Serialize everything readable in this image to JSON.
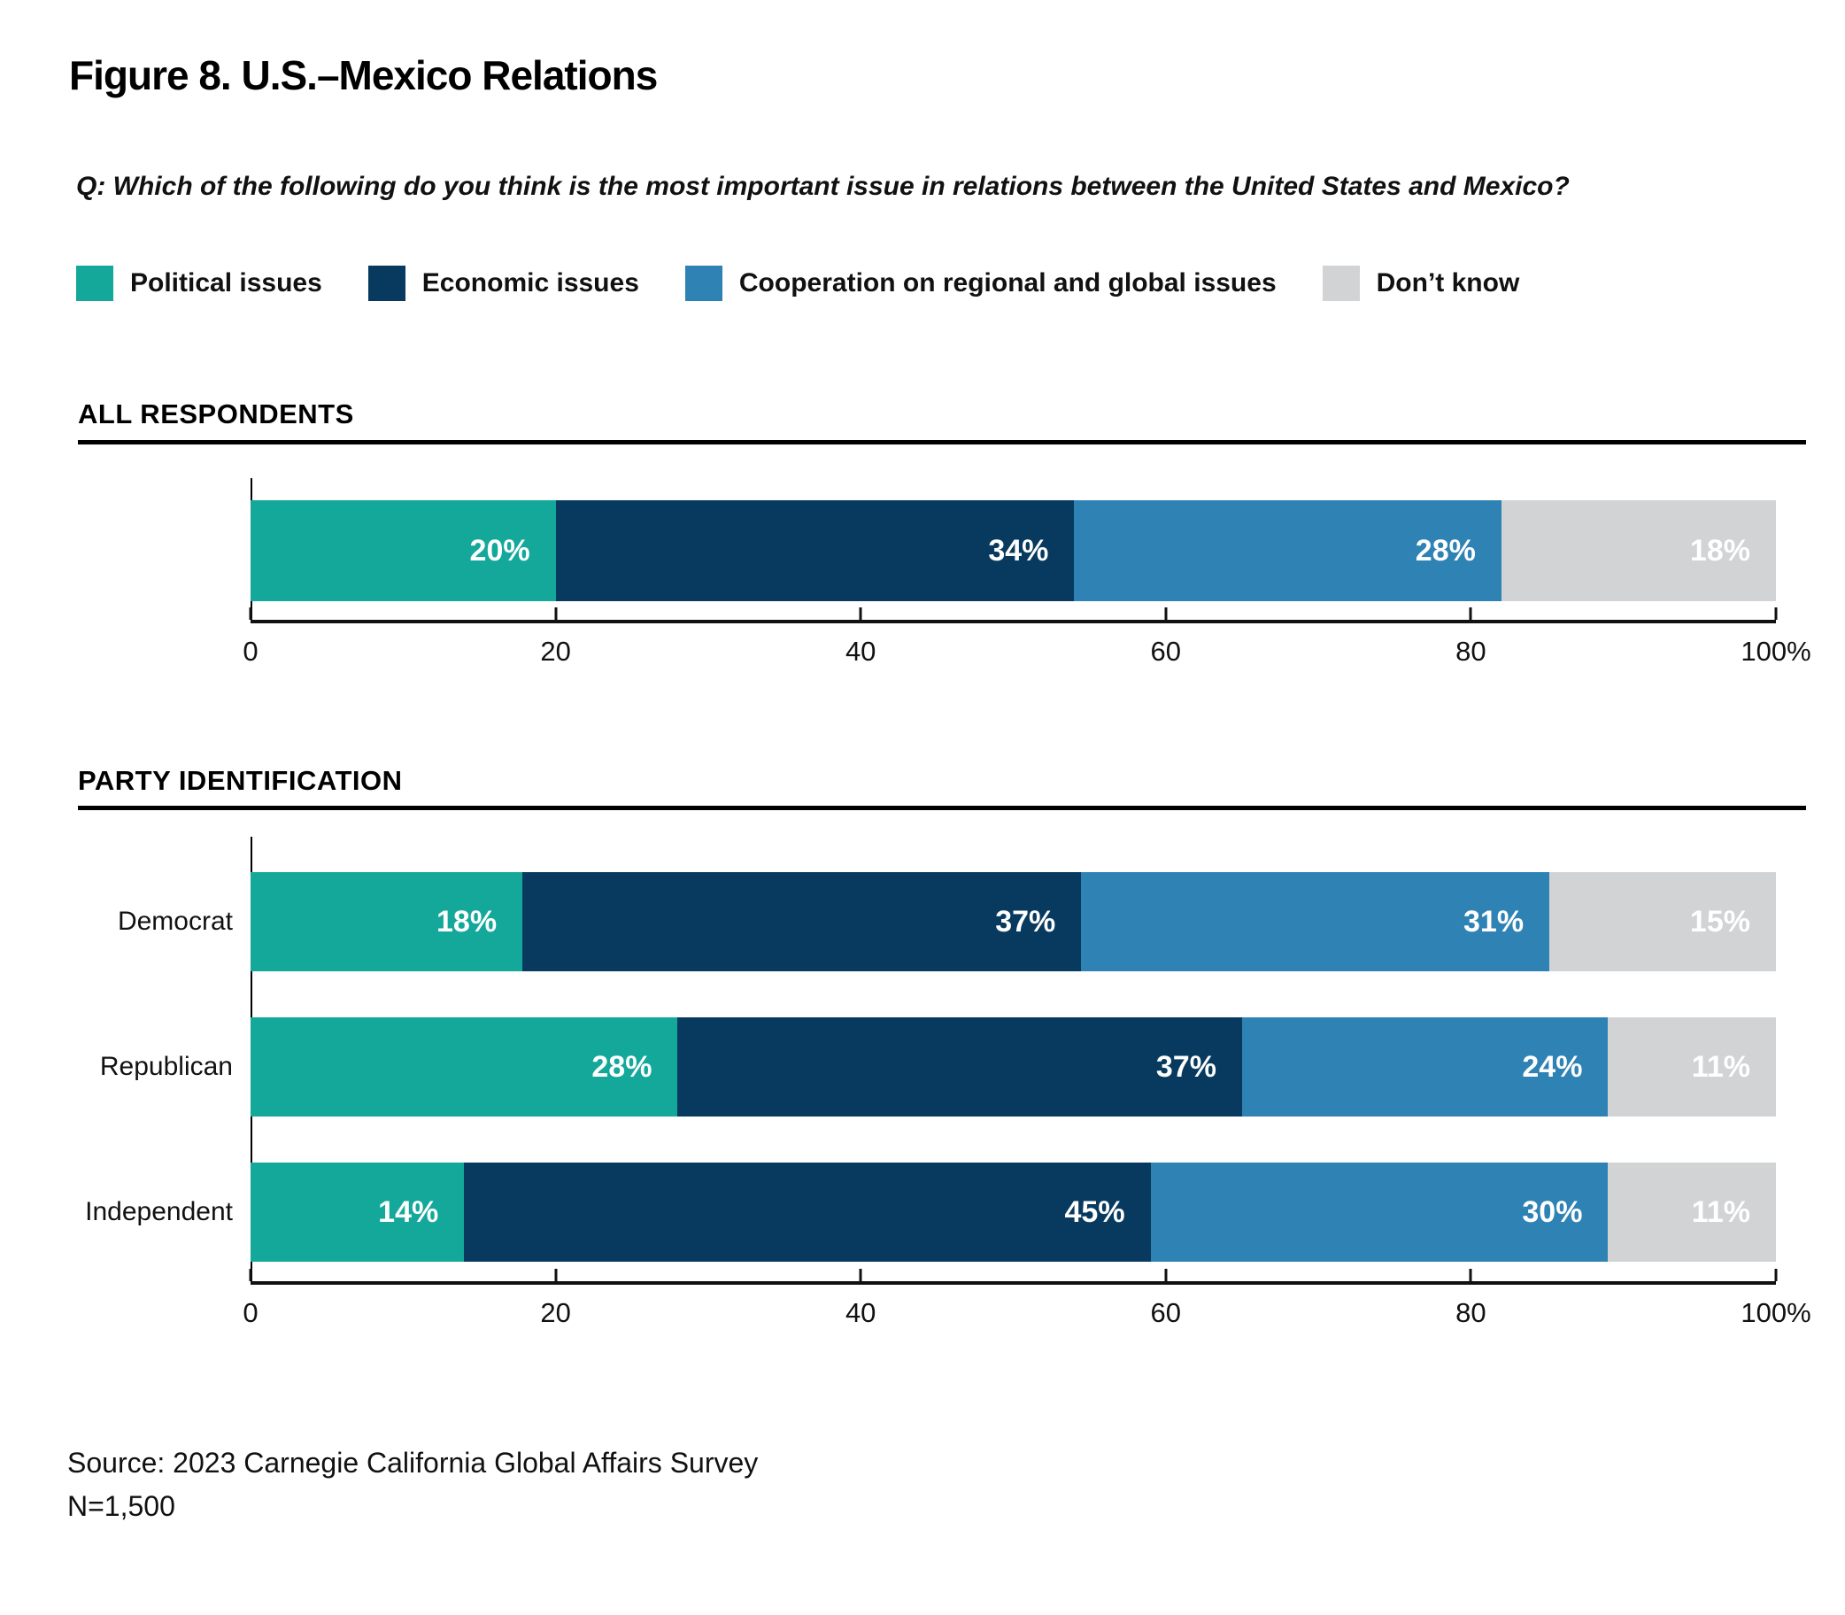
{
  "page": {
    "title": "Figure 8. U.S.–Mexico Relations",
    "question": "Q: Which of the following do you think is the most important issue in relations between the United States and Mexico?",
    "source": "Source: 2023 Carnegie California Global Affairs Survey",
    "sample_size": "N=1,500"
  },
  "legend": [
    {
      "label": "Political issues",
      "color": "#14A89B"
    },
    {
      "label": "Economic issues",
      "color": "#073A5E"
    },
    {
      "label": "Cooperation on regional and global issues",
      "color": "#2E82B4"
    },
    {
      "label": "Don’t know",
      "color": "#D2D3D4"
    }
  ],
  "chart_data": [
    {
      "type": "bar",
      "stacked": true,
      "orientation": "horizontal",
      "section": "ALL RESPONDENTS",
      "categories": [
        "All respondents"
      ],
      "category_labels_visible": false,
      "series": [
        {
          "name": "Political issues",
          "values": [
            20
          ]
        },
        {
          "name": "Economic issues",
          "values": [
            34
          ]
        },
        {
          "name": "Cooperation on regional and global issues",
          "values": [
            28
          ]
        },
        {
          "name": "Don’t know",
          "values": [
            18
          ]
        }
      ],
      "value_suffix": "%",
      "xlim": [
        0,
        100
      ],
      "tick_positions": [
        0,
        20,
        40,
        60,
        80,
        100
      ],
      "tick_labels": [
        "0",
        "20",
        "40",
        "60",
        "80",
        "100%"
      ],
      "grid": false,
      "legend_position": "top"
    },
    {
      "type": "bar",
      "stacked": true,
      "orientation": "horizontal",
      "section": "PARTY IDENTIFICATION",
      "categories": [
        "Democrat",
        "Republican",
        "Independent"
      ],
      "category_labels_visible": true,
      "series": [
        {
          "name": "Political issues",
          "values": [
            18,
            28,
            14
          ]
        },
        {
          "name": "Economic issues",
          "values": [
            37,
            37,
            45
          ]
        },
        {
          "name": "Cooperation on regional and global issues",
          "values": [
            31,
            24,
            30
          ]
        },
        {
          "name": "Don’t know",
          "values": [
            15,
            11,
            11
          ]
        }
      ],
      "value_suffix": "%",
      "xlim": [
        0,
        100
      ],
      "tick_positions": [
        0,
        20,
        40,
        60,
        80,
        100
      ],
      "tick_labels": [
        "0",
        "20",
        "40",
        "60",
        "80",
        "100%"
      ],
      "grid": false,
      "legend_position": "top"
    }
  ]
}
